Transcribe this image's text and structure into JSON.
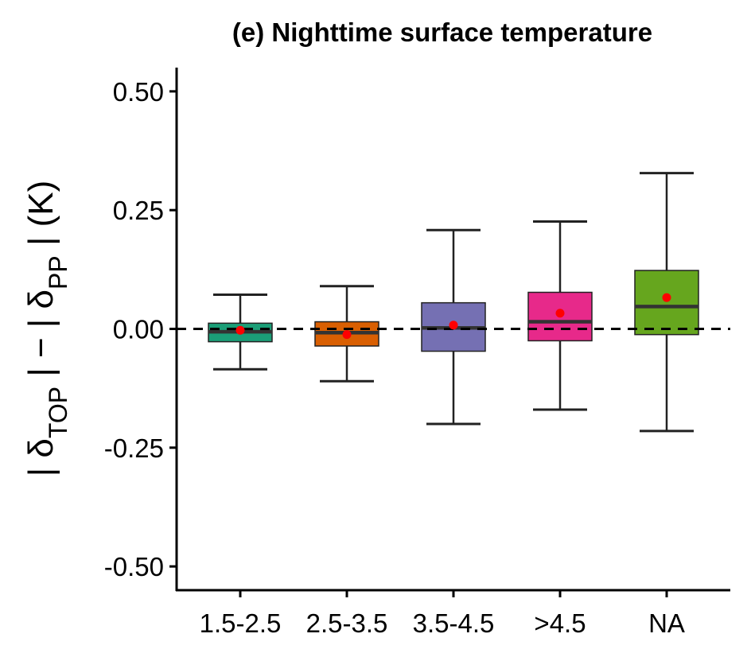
{
  "chart_data": {
    "type": "box",
    "title": "(e) Nighttime surface temperature",
    "ylabel": {
      "parts": [
        {
          "text": "| δ",
          "sub": false
        },
        {
          "text": "TOP",
          "sub": true
        },
        {
          "text": " | − | δ",
          "sub": false
        },
        {
          "text": "PP",
          "sub": true
        },
        {
          "text": " | (K)",
          "sub": false
        }
      ]
    },
    "xlabel": "",
    "ylim": [
      -0.55,
      0.55
    ],
    "yticks": [
      -0.5,
      -0.25,
      0.0,
      0.25,
      0.5
    ],
    "ytick_labels": [
      "-0.50",
      "-0.25",
      "0.00",
      "0.25",
      "0.50"
    ],
    "reference_line": {
      "y": 0.0,
      "style": "dashed",
      "color": "#000000"
    },
    "categories": [
      "1.5-2.5",
      "2.5-3.5",
      "3.5-4.5",
      ">4.5",
      "NA"
    ],
    "boxes": [
      {
        "category": "1.5-2.5",
        "whisker_low": -0.085,
        "q1": -0.027,
        "median": -0.006,
        "q3": 0.012,
        "whisker_high": 0.072,
        "mean": -0.003,
        "color": "#1b9e77"
      },
      {
        "category": "2.5-3.5",
        "whisker_low": -0.11,
        "q1": -0.036,
        "median": -0.008,
        "q3": 0.015,
        "whisker_high": 0.09,
        "mean": -0.012,
        "color": "#d95f02"
      },
      {
        "category": "3.5-4.5",
        "whisker_low": -0.2,
        "q1": -0.047,
        "median": 0.002,
        "q3": 0.055,
        "whisker_high": 0.208,
        "mean": 0.008,
        "color": "#7570b3"
      },
      {
        "category": ">4.5",
        "whisker_low": -0.17,
        "q1": -0.025,
        "median": 0.015,
        "q3": 0.077,
        "whisker_high": 0.226,
        "mean": 0.033,
        "color": "#e7298a"
      },
      {
        "category": "NA",
        "whisker_low": -0.215,
        "q1": -0.012,
        "median": 0.047,
        "q3": 0.123,
        "whisker_high": 0.328,
        "mean": 0.066,
        "color": "#66a61e"
      }
    ],
    "mean_marker_color": "#ff0000",
    "grid": false,
    "legend": "none"
  }
}
